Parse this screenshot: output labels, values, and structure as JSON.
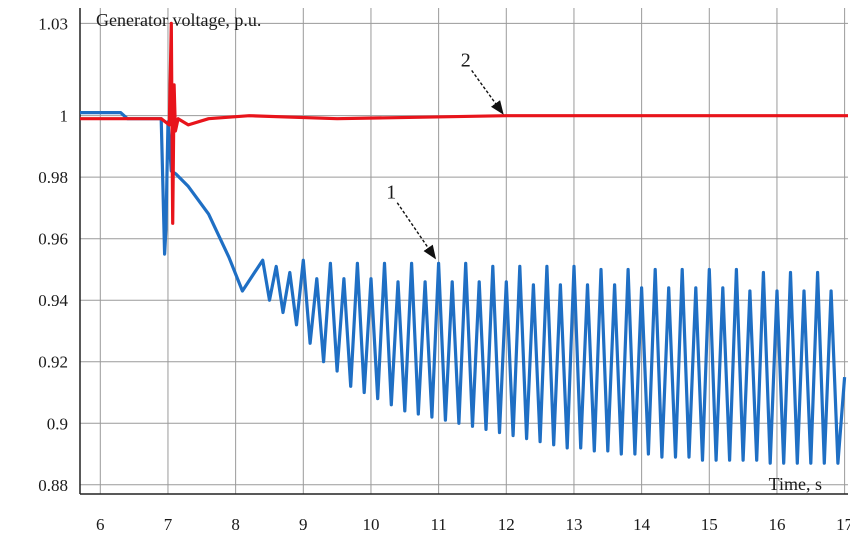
{
  "chart_data": {
    "type": "line",
    "title": "Generator voltage, p.u.",
    "xlabel": "Time, s",
    "ylabel": "",
    "xlim": [
      5.7,
      17.05
    ],
    "ylim": [
      0.877,
      1.035
    ],
    "grid": true,
    "xticks": [
      6,
      7,
      8,
      9,
      10,
      11,
      12,
      13,
      14,
      15,
      16,
      17
    ],
    "xtick_labels": [
      "6",
      "7",
      "8",
      "9",
      "10",
      "11",
      "12",
      "13",
      "14",
      "15",
      "16",
      "17"
    ],
    "yticks": [
      0.88,
      0.9,
      0.92,
      0.94,
      0.96,
      0.98,
      1,
      1.03
    ],
    "ytick_labels": [
      "0.88",
      "0.9",
      "0.92",
      "0.94",
      "0.96",
      "0.98",
      "1",
      "1.03"
    ],
    "series": [
      {
        "name": "1",
        "color": "#1f6fc4",
        "x": [
          5.7,
          6.3,
          6.4,
          6.9,
          6.95,
          6.97,
          7.0,
          7.05,
          7.12,
          7.3,
          7.6,
          7.9,
          8.1,
          8.25,
          8.4,
          8.5,
          8.6,
          8.7,
          8.8,
          8.9,
          9.0,
          9.1,
          9.2,
          9.3,
          9.4,
          9.5,
          9.6,
          9.7,
          9.8,
          9.9,
          10.0,
          10.1,
          10.2,
          10.3,
          10.4,
          10.5,
          10.6,
          10.7,
          10.8,
          10.9,
          11.0,
          11.1,
          11.2,
          11.3,
          11.4,
          11.5,
          11.6,
          11.7,
          11.8,
          11.9,
          12.0,
          12.1,
          12.2,
          12.3,
          12.4,
          12.5,
          12.6,
          12.7,
          12.8,
          12.9,
          13.0,
          13.1,
          13.2,
          13.3,
          13.4,
          13.5,
          13.6,
          13.7,
          13.8,
          13.9,
          14.0,
          14.1,
          14.2,
          14.3,
          14.4,
          14.5,
          14.6,
          14.7,
          14.8,
          14.9,
          15.0,
          15.1,
          15.2,
          15.3,
          15.4,
          15.5,
          15.6,
          15.7,
          15.8,
          15.9,
          16.0,
          16.1,
          16.2,
          16.3,
          16.4,
          16.5,
          16.6,
          16.7,
          16.8,
          16.9,
          17.0
        ],
        "y": [
          1.001,
          1.001,
          0.999,
          0.999,
          0.955,
          0.963,
          0.998,
          0.982,
          0.981,
          0.977,
          0.968,
          0.954,
          0.943,
          0.948,
          0.953,
          0.94,
          0.951,
          0.936,
          0.949,
          0.932,
          0.953,
          0.926,
          0.947,
          0.92,
          0.952,
          0.917,
          0.947,
          0.912,
          0.952,
          0.91,
          0.947,
          0.908,
          0.952,
          0.906,
          0.946,
          0.904,
          0.952,
          0.903,
          0.946,
          0.902,
          0.952,
          0.901,
          0.946,
          0.9,
          0.952,
          0.899,
          0.946,
          0.898,
          0.951,
          0.897,
          0.946,
          0.896,
          0.951,
          0.895,
          0.945,
          0.894,
          0.951,
          0.893,
          0.945,
          0.892,
          0.951,
          0.892,
          0.945,
          0.891,
          0.95,
          0.891,
          0.945,
          0.89,
          0.95,
          0.89,
          0.944,
          0.89,
          0.95,
          0.889,
          0.944,
          0.889,
          0.95,
          0.889,
          0.944,
          0.888,
          0.95,
          0.888,
          0.944,
          0.888,
          0.95,
          0.888,
          0.943,
          0.888,
          0.949,
          0.887,
          0.943,
          0.887,
          0.949,
          0.887,
          0.943,
          0.887,
          0.949,
          0.887,
          0.943,
          0.887,
          0.915
        ]
      },
      {
        "name": "2",
        "color": "#e8141b",
        "x": [
          5.7,
          6.9,
          7.02,
          7.05,
          7.07,
          7.09,
          7.11,
          7.15,
          7.3,
          7.6,
          8.2,
          9.5,
          12.0,
          17.05
        ],
        "y": [
          0.999,
          0.999,
          0.997,
          1.03,
          0.965,
          1.01,
          0.995,
          0.999,
          0.997,
          0.999,
          1.0,
          0.999,
          1.0,
          1.0
        ]
      }
    ],
    "annotations": [
      {
        "text": "1",
        "x": 10.95,
        "y": 0.953,
        "label_x": 10.3,
        "label_y": 0.973
      },
      {
        "text": "2",
        "x": 11.95,
        "y": 1.0,
        "label_x": 11.4,
        "label_y": 1.016
      }
    ]
  }
}
